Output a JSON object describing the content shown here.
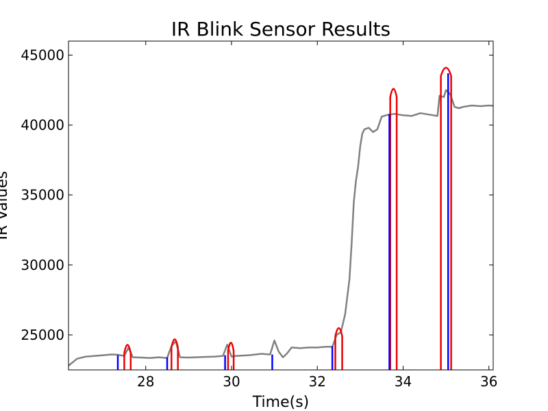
{
  "chart_data": {
    "type": "line",
    "title": "IR Blink Sensor Results",
    "xlabel": "Time(s)",
    "ylabel": "IR Values",
    "xlim": [
      26.2,
      36.1
    ],
    "ylim": [
      22500,
      46000
    ],
    "xticks": [
      28,
      30,
      32,
      34,
      36
    ],
    "yticks": [
      25000,
      30000,
      35000,
      40000,
      45000
    ],
    "grid": false,
    "colors": {
      "signal": "#808080",
      "blink_onset": "#0000ff",
      "blink_peak": "#ee0000"
    },
    "series": [
      {
        "role": "signal",
        "x": [
          26.2,
          26.4,
          26.6,
          26.8,
          27.0,
          27.2,
          27.35,
          27.5,
          27.6,
          27.7,
          27.9,
          28.1,
          28.3,
          28.5,
          28.6,
          28.7,
          28.8,
          29.0,
          29.3,
          29.6,
          29.8,
          29.9,
          30.0,
          30.1,
          30.4,
          30.7,
          30.9,
          31.0,
          31.1,
          31.2,
          31.3,
          31.4,
          31.6,
          31.8,
          32.0,
          32.2,
          32.35,
          32.45,
          32.55,
          32.65,
          32.75,
          32.8,
          32.85,
          32.9,
          32.95,
          33.0,
          33.05,
          33.1,
          33.2,
          33.3,
          33.4,
          33.5,
          33.6,
          33.7,
          33.8,
          33.9,
          34.0,
          34.2,
          34.4,
          34.6,
          34.8,
          34.85,
          34.9,
          34.95,
          35.0,
          35.1,
          35.2,
          35.3,
          35.4,
          35.6,
          35.8,
          36.0,
          36.1
        ],
        "y": [
          22800,
          23300,
          23450,
          23500,
          23550,
          23600,
          23580,
          23500,
          24100,
          23400,
          23380,
          23350,
          23400,
          23350,
          24200,
          24550,
          23400,
          23380,
          23420,
          23450,
          23500,
          24300,
          23450,
          23500,
          23550,
          23650,
          23600,
          24600,
          23800,
          23400,
          23700,
          24100,
          24050,
          24100,
          24100,
          24150,
          24150,
          25000,
          25200,
          26500,
          29000,
          31500,
          34500,
          36000,
          37000,
          38500,
          39400,
          39700,
          39800,
          39500,
          39700,
          40600,
          40700,
          40750,
          40800,
          40750,
          40700,
          40650,
          40850,
          40750,
          40650,
          42100,
          42050,
          42000,
          42500,
          42200,
          41300,
          41200,
          41300,
          41400,
          41350,
          41400,
          41380
        ]
      }
    ],
    "blinks": [
      {
        "onset": 27.35,
        "onset_value": 23550,
        "start": 27.5,
        "end": 27.65,
        "peak": 24300
      },
      {
        "onset": 28.5,
        "onset_value": 23400,
        "start": 28.6,
        "end": 28.75,
        "peak": 24700
      },
      {
        "onset": 29.85,
        "onset_value": 23550,
        "start": 29.92,
        "end": 30.05,
        "peak": 24450
      },
      {
        "onset": 30.95,
        "onset_value": 23600,
        "start": null,
        "end": null,
        "peak": null
      },
      {
        "onset": 32.35,
        "onset_value": 24200,
        "start": 32.42,
        "end": 32.58,
        "peak": 25500
      },
      {
        "onset": 33.68,
        "onset_value": 40800,
        "start": 33.7,
        "end": 33.85,
        "peak": 42600
      },
      {
        "onset": 35.05,
        "onset_value": 43700,
        "start": 34.88,
        "end": 35.12,
        "peak": 44100
      }
    ]
  }
}
